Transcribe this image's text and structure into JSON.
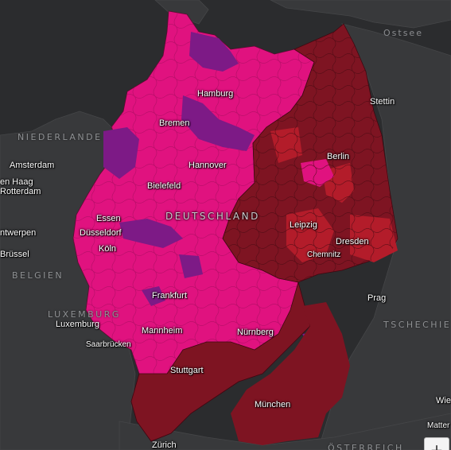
{
  "colors": {
    "land": "#38393b",
    "water": "#2b2c2e",
    "pink": "#e0127f",
    "purple": "#7d1a86",
    "darkred": "#7e1422",
    "red": "#9b1521",
    "brightred": "#b31c2a",
    "border": "#5a0a30"
  },
  "sea_labels": {
    "ostsee": "Ostsee"
  },
  "country_labels": {
    "niederlande": "NIEDERLANDE",
    "belgien": "BELGIEN",
    "luxemburg": "LUXEMBURG",
    "tschechien": "TSCHECHIE",
    "oesterreich": "ÖSTERREICH",
    "deutschland": "DEUTSCHLAND"
  },
  "cities": {
    "hamburg": "Hamburg",
    "stettin": "Stettin",
    "bremen": "Bremen",
    "berlin": "Berlin",
    "amsterdam": "Amsterdam",
    "den_haag": "en Haag",
    "rotterdam": "Rotterdam",
    "hannover": "Hannover",
    "bielefeld": "Bielefeld",
    "essen": "Essen",
    "duesseldorf": "Düsseldorf",
    "leipzig": "Leipzig",
    "antwerpen": "ntwerpen",
    "dresden": "Dresden",
    "koeln": "Köln",
    "bruessel": "Brüssel",
    "chemnitz": "Chemnitz",
    "prag": "Prag",
    "frankfurt": "Frankfurt",
    "luxemburg_city": "Luxemburg",
    "nuernberg": "Nürnberg",
    "mannheim": "Mannheim",
    "saarbruecken": "Saarbrücken",
    "stuttgart": "Stuttgart",
    "wien": "Wie",
    "muenchen": "München",
    "matter": "Matter",
    "zuerich": "Zürich"
  },
  "controls": {
    "zoom_in": "+"
  }
}
